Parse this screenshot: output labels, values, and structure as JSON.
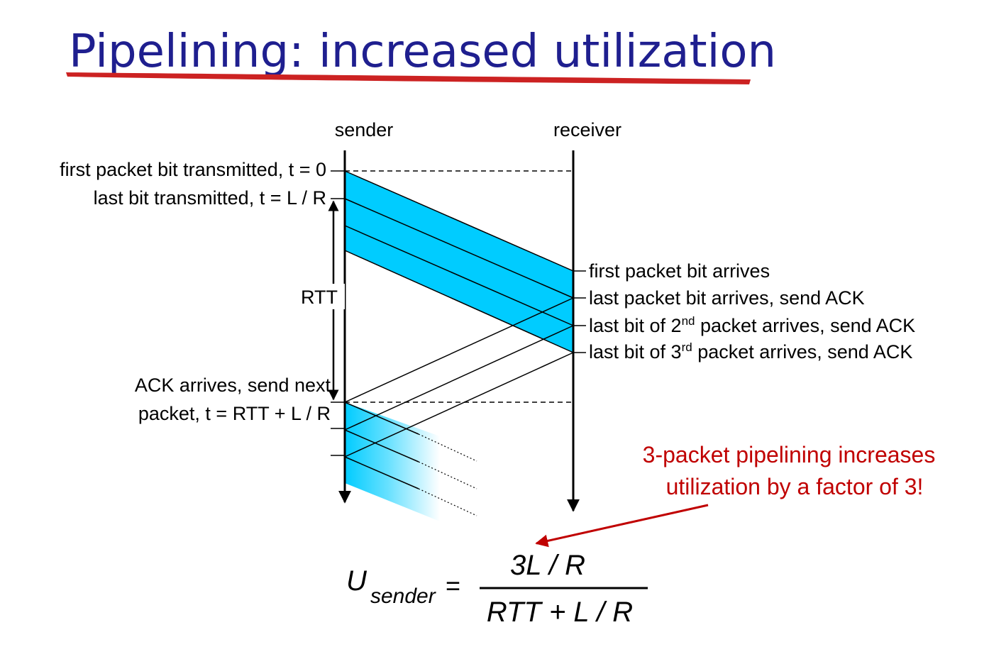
{
  "slide": {
    "title": "Pipelining: increased utilization"
  },
  "diagram": {
    "sender_label": "sender",
    "receiver_label": "receiver",
    "left_labels": {
      "t0": "first packet bit transmitted, t = 0",
      "tLR": "last bit transmitted, t = L / R",
      "rtt": "RTT",
      "ack_line1": "ACK arrives, send next",
      "ack_line2": "packet, t = RTT + L / R"
    },
    "right_labels": {
      "first_arrives": "first packet bit arrives",
      "last_arrives": "last packet bit arrives, send ACK",
      "second_prefix": "last bit of 2",
      "second_sup": "nd",
      "second_suffix": " packet arrives, send ACK",
      "third_prefix": "last bit of 3",
      "third_sup": "rd",
      "third_suffix": " packet arrives, send ACK"
    },
    "callout_line1": "3-packet pipelining increases",
    "callout_line2": "utilization by a factor of 3!",
    "colors": {
      "packet_fill": "#00ccff",
      "callout": "#c00000",
      "title": "#1f1f8f",
      "underline": "#cc2222"
    }
  },
  "formula": {
    "u": "U",
    "subscript": "sender",
    "equals": "=",
    "numerator": "3L / R",
    "denominator": "RTT + L / R"
  }
}
